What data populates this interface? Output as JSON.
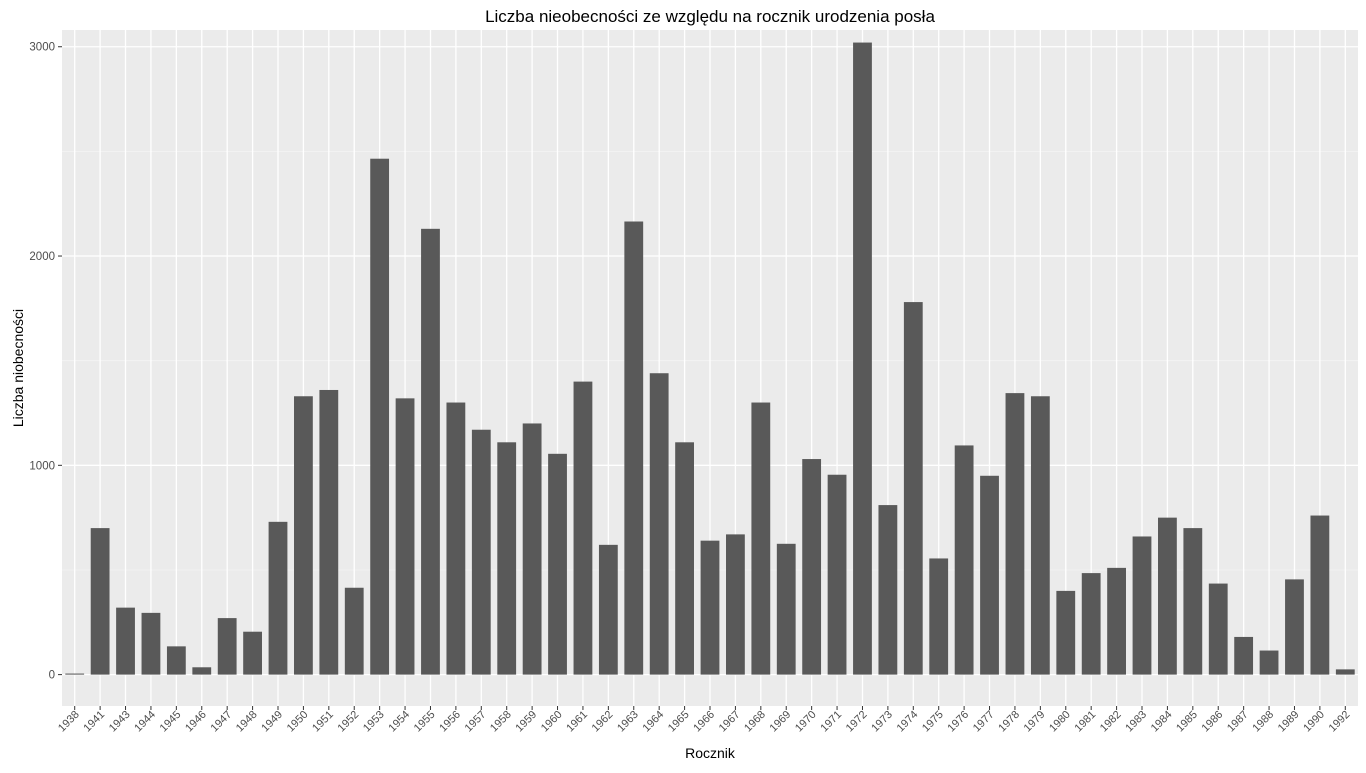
{
  "chart_data": {
    "type": "bar",
    "title": "Liczba nieobecności ze względu na rocznik urodzenia posła",
    "xlabel": "Rocznik",
    "ylabel": "Liczba niobecności",
    "ylim": [
      -150,
      3080
    ],
    "yticks": [
      0,
      1000,
      2000,
      3000
    ],
    "grid": true,
    "categories": [
      "1938",
      "1941",
      "1943",
      "1944",
      "1945",
      "1946",
      "1947",
      "1948",
      "1949",
      "1950",
      "1951",
      "1952",
      "1953",
      "1954",
      "1955",
      "1956",
      "1957",
      "1958",
      "1959",
      "1960",
      "1961",
      "1962",
      "1963",
      "1964",
      "1965",
      "1966",
      "1967",
      "1968",
      "1969",
      "1970",
      "1971",
      "1972",
      "1973",
      "1974",
      "1975",
      "1976",
      "1977",
      "1978",
      "1979",
      "1980",
      "1981",
      "1982",
      "1983",
      "1984",
      "1985",
      "1986",
      "1987",
      "1988",
      "1989",
      "1990",
      "1992"
    ],
    "values": [
      5,
      700,
      320,
      295,
      135,
      35,
      270,
      205,
      730,
      1330,
      1360,
      415,
      2465,
      1320,
      2130,
      1300,
      1170,
      1110,
      1200,
      1055,
      1400,
      620,
      2165,
      1440,
      1110,
      640,
      670,
      1300,
      625,
      1030,
      955,
      3020,
      810,
      1780,
      555,
      1095,
      950,
      1345,
      1330,
      400,
      485,
      510,
      660,
      750,
      700,
      435,
      180,
      115,
      455,
      760,
      25
    ],
    "colors": {
      "bar": "#595959",
      "panel": "#ebebeb",
      "grid_major": "#ffffff",
      "grid_minor": "#f5f5f5",
      "tick_text": "#4d4d4d",
      "text": "#000000"
    }
  }
}
